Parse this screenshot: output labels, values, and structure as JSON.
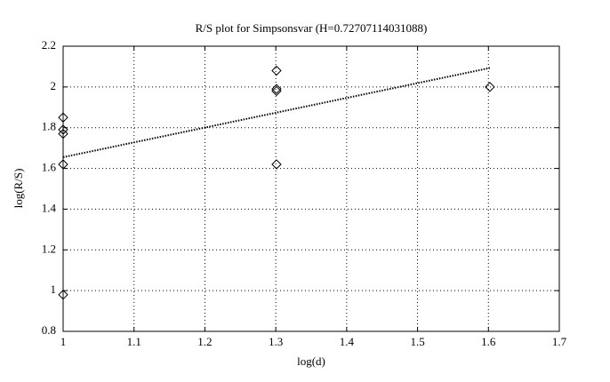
{
  "chart_data": {
    "type": "scatter",
    "title": "R/S plot for Simpsonsvar (H=0.72707114031088)",
    "x_label": "log(d)",
    "y_label": "log(R/S)",
    "xlim": [
      1,
      1.7
    ],
    "xticks": [
      1,
      1.1,
      1.2,
      1.3,
      1.4,
      1.5,
      1.6,
      1.7
    ],
    "ylim": [
      0.8,
      2.2
    ],
    "yticks": [
      0.8,
      1,
      1.2,
      1.4,
      1.6,
      1.8,
      2,
      2.2
    ],
    "grid": true,
    "series": [
      {
        "type": "scatter",
        "marker": "diamond",
        "color": "#000000",
        "x": [
          1,
          1,
          1,
          1,
          1,
          1.301,
          1.301,
          1.301,
          1.301,
          1.602
        ],
        "values": [
          1.85,
          1.79,
          1.77,
          1.62,
          0.98,
          2.08,
          1.99,
          1.98,
          1.62,
          2.0
        ]
      },
      {
        "type": "line",
        "style": "dotted",
        "color": "#000000",
        "x": [
          1,
          1.602
        ],
        "values": [
          1.655,
          2.093
        ]
      }
    ]
  }
}
